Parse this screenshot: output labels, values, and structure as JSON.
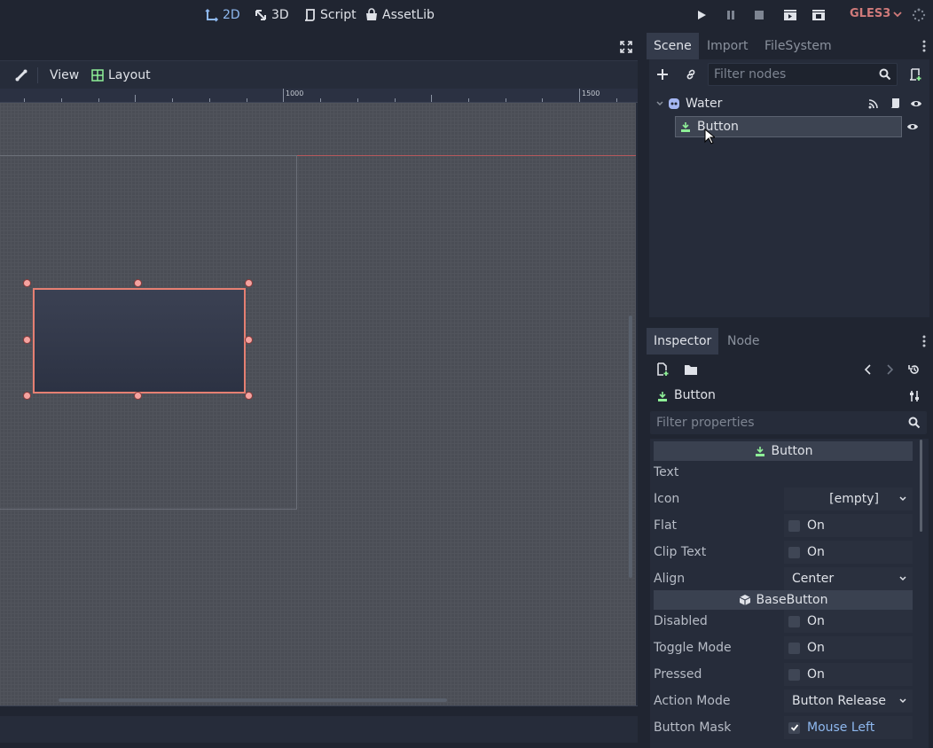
{
  "topbar": {
    "modes": [
      {
        "label": "2D",
        "icon": "2d-icon",
        "active": true
      },
      {
        "label": "3D",
        "icon": "3d-icon",
        "active": false
      },
      {
        "label": "Script",
        "icon": "script-icon",
        "active": false
      },
      {
        "label": "AssetLib",
        "icon": "assetlib-icon",
        "active": false
      }
    ],
    "renderer": "GLES3"
  },
  "viewport": {
    "toolbar": {
      "view_label": "View",
      "layout_label": "Layout"
    },
    "ruler": {
      "label_1000": "1000",
      "label_1500": "1500"
    }
  },
  "scene_dock": {
    "tabs": [
      "Scene",
      "Import",
      "FileSystem"
    ],
    "active_tab": "Scene",
    "filter_placeholder": "Filter nodes",
    "tree": [
      {
        "name": "Water",
        "icon": "control-icon",
        "expanded": true
      },
      {
        "name": "Button",
        "icon": "button-icon",
        "selected": true
      }
    ]
  },
  "inspector_dock": {
    "tabs": [
      "Inspector",
      "Node"
    ],
    "active_tab": "Inspector",
    "object_name": "Button",
    "filter_placeholder": "Filter properties",
    "sections": {
      "button": "Button",
      "basebutton": "BaseButton"
    },
    "properties": {
      "text": {
        "label": "Text",
        "value": ""
      },
      "icon": {
        "label": "Icon",
        "value": "[empty]"
      },
      "flat": {
        "label": "Flat",
        "value": "On",
        "checked": false
      },
      "clip_text": {
        "label": "Clip Text",
        "value": "On",
        "checked": false
      },
      "align": {
        "label": "Align",
        "value": "Center"
      },
      "disabled": {
        "label": "Disabled",
        "value": "On",
        "checked": false
      },
      "toggle_mode": {
        "label": "Toggle Mode",
        "value": "On",
        "checked": false
      },
      "pressed": {
        "label": "Pressed",
        "value": "On",
        "checked": false
      },
      "action_mode": {
        "label": "Action Mode",
        "value": "Button Release"
      },
      "button_mask": {
        "label": "Button Mask",
        "value": "Mouse Left",
        "checked": true
      }
    }
  },
  "colors": {
    "accent": "#8eb8ef",
    "selection_outline": "#e57f72",
    "node_green": "#8eef97",
    "renderer_red": "#d07a7a"
  }
}
